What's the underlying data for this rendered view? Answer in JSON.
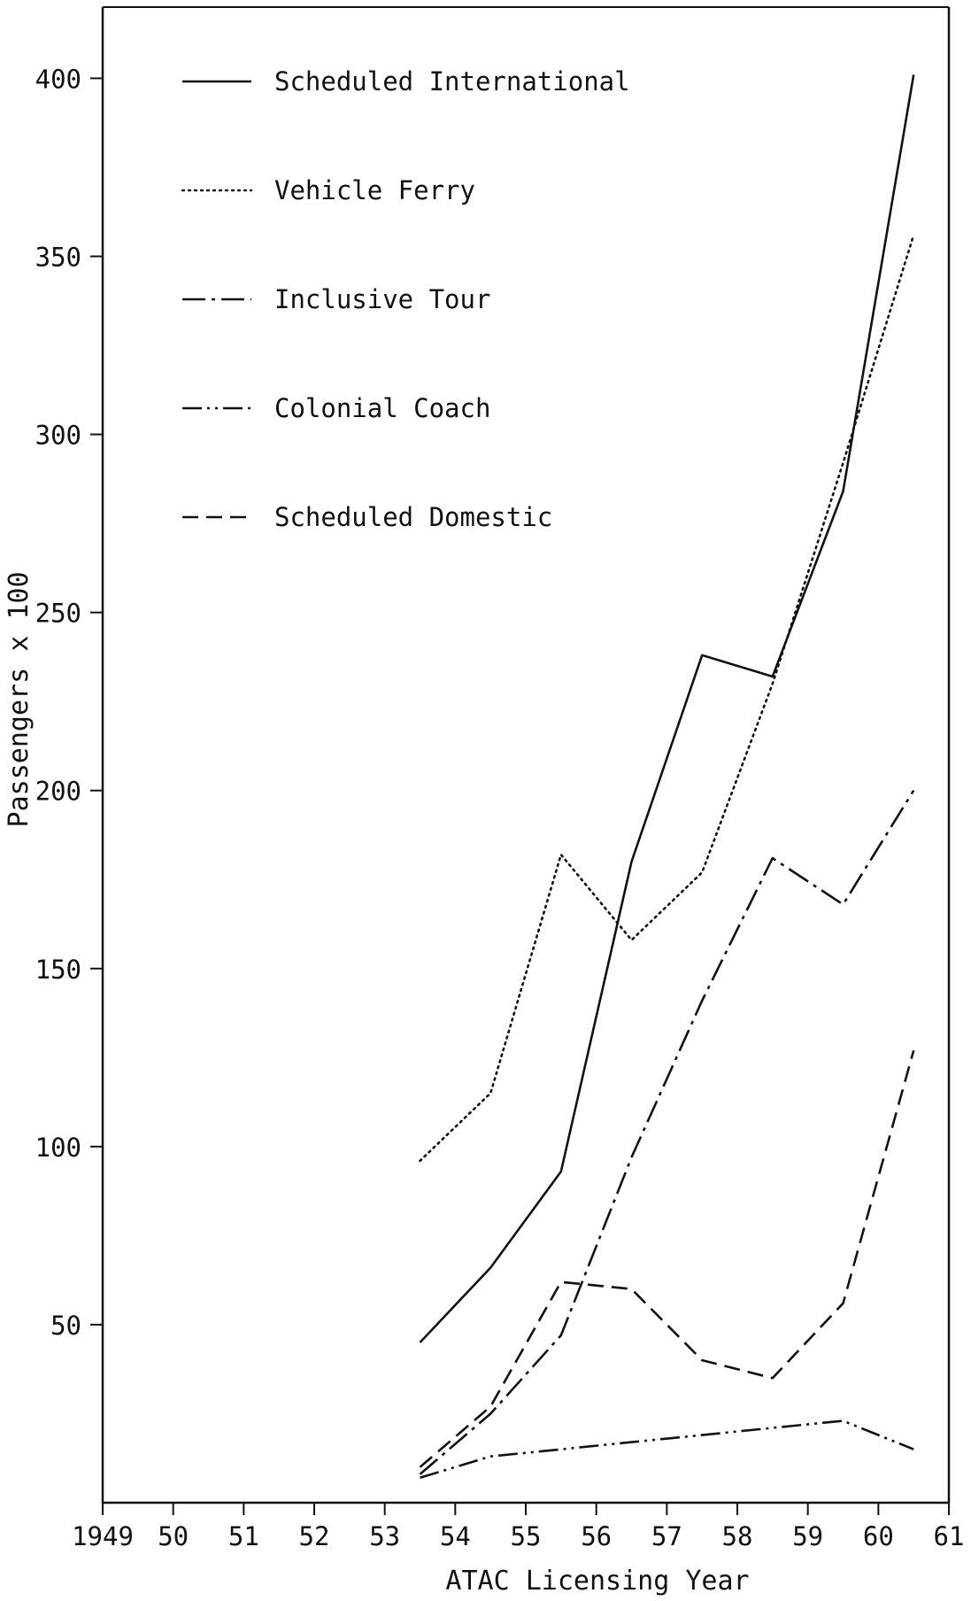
{
  "chart_data": {
    "type": "line",
    "xlabel": "ATAC Licensing Year",
    "ylabel": "Passengers x 100",
    "x_ticks": [
      "1949",
      "50",
      "51",
      "52",
      "53",
      "54",
      "55",
      "56",
      "57",
      "58",
      "59",
      "60",
      "61"
    ],
    "y_ticks": [
      "50",
      "100",
      "150",
      "200",
      "250",
      "300",
      "350",
      "400"
    ],
    "xlim": [
      1949,
      1961
    ],
    "ylim": [
      0,
      420
    ],
    "grid": false,
    "legend_position": "top-left",
    "x": [
      1953.5,
      1954.5,
      1955.5,
      1956.5,
      1957.5,
      1958.5,
      1959.5,
      1960.5
    ],
    "series": [
      {
        "name": "Scheduled International",
        "dash": "",
        "values": [
          45,
          66,
          93,
          180,
          238,
          232,
          284,
          401
        ]
      },
      {
        "name": "Vehicle Ferry",
        "dash": "2 5",
        "values": [
          96,
          115,
          182,
          158,
          177,
          230,
          292,
          356
        ]
      },
      {
        "name": "Inclusive Tour",
        "dash": "26 7 4 7",
        "values": [
          8,
          25,
          47,
          97,
          141,
          181,
          168,
          200
        ]
      },
      {
        "name": "Colonial Coach",
        "dash": "22 6 3 6 3 6",
        "values": [
          7,
          13,
          15,
          17,
          19,
          21,
          23,
          15
        ]
      },
      {
        "name": "Scheduled Domestic",
        "dash": "18 9",
        "values": [
          10,
          27,
          62,
          60,
          40,
          35,
          56,
          127
        ]
      }
    ]
  }
}
